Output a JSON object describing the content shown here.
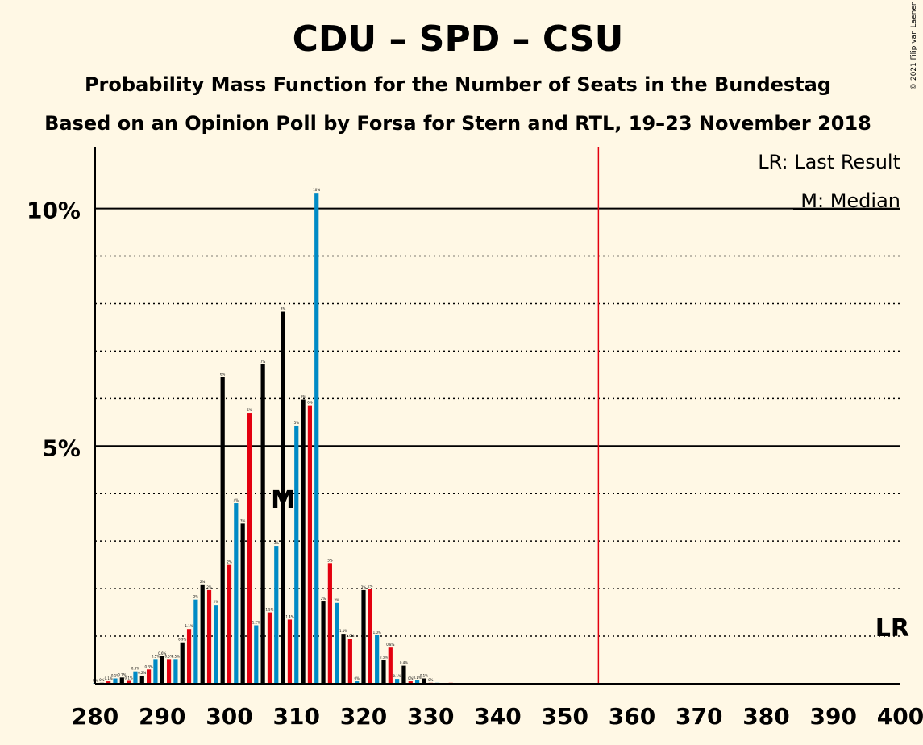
{
  "chart_data": {
    "type": "bar",
    "title": "CDU – SPD – CSU",
    "subtitle1": "Probability Mass Function for the Number of Seats in the Bundestag",
    "subtitle2": "Based on an Opinion Poll by Forsa for Stern and RTL, 19–23 November 2018",
    "copyright": "© 2021 Filip van Laenen",
    "legend": {
      "lr": "LR: Last Result",
      "median": "M: Median"
    },
    "lr_label": "LR",
    "median_marker": "M",
    "median_seat": 308,
    "last_result_seat": 355,
    "xlim": [
      280,
      400
    ],
    "ylim": [
      0,
      11.3
    ],
    "x_ticks": [
      280,
      290,
      300,
      310,
      320,
      330,
      340,
      350,
      360,
      370,
      380,
      390,
      400
    ],
    "x_tick_labels": [
      "280",
      "290",
      "300",
      "310",
      "320",
      "330",
      "340",
      "350",
      "360",
      "370",
      "380",
      "390",
      "400"
    ],
    "y_ticks_major": [
      5,
      10
    ],
    "y_tick_labels": [
      "5%",
      "10%"
    ],
    "y_ticks_dotted": [
      1,
      2,
      3,
      4,
      6,
      7,
      8,
      9
    ],
    "colors": {
      "background": "#FFF8E5",
      "cdu": "#000000",
      "spd": "#E3000F",
      "csu": "#008AC5",
      "lr_line": "#E3000F",
      "axis": "#000000"
    },
    "x": [
      280,
      281,
      282,
      283,
      284,
      285,
      286,
      287,
      288,
      289,
      290,
      291,
      292,
      293,
      294,
      295,
      296,
      297,
      298,
      299,
      300,
      301,
      302,
      303,
      304,
      305,
      306,
      307,
      308,
      309,
      310,
      311,
      312,
      313,
      314,
      315,
      316,
      317,
      318,
      319,
      320,
      321,
      322,
      323,
      324,
      325,
      326,
      327,
      328,
      329,
      330,
      331,
      332,
      333,
      334,
      335,
      336,
      337,
      338,
      339,
      340,
      341,
      342,
      343,
      344,
      345,
      346,
      347,
      348,
      349,
      350,
      351,
      352,
      353,
      354,
      355,
      356,
      357,
      358,
      359,
      360,
      361,
      362,
      363,
      364,
      365,
      366,
      367,
      368,
      369,
      370,
      371,
      372,
      373,
      374,
      375,
      376,
      377,
      378,
      379,
      380,
      381,
      382,
      383,
      384,
      385,
      386,
      387,
      388,
      389,
      390,
      391,
      392,
      393,
      394,
      395,
      396,
      397,
      398,
      399
    ],
    "values": [
      0.01,
      0.02,
      0.05,
      0.11,
      0.13,
      0.06,
      0.26,
      0.17,
      0.3,
      0.52,
      0.58,
      0.52,
      0.52,
      0.87,
      1.15,
      1.77,
      2.09,
      1.97,
      1.66,
      6.46,
      2.5,
      3.8,
      3.37,
      5.7,
      1.23,
      6.72,
      1.5,
      2.9,
      7.83,
      1.35,
      5.43,
      5.98,
      5.86,
      10.33,
      1.73,
      2.54,
      1.7,
      1.05,
      0.95,
      0.05,
      1.97,
      1.99,
      1.02,
      0.5,
      0.76,
      0.1,
      0.38,
      0.05,
      0.07,
      0.11,
      0.02,
      0.02,
      0.01,
      0.02,
      0.01,
      0.01,
      0.01,
      0.01,
      0.01,
      0.01,
      0.01,
      0.01,
      0.01,
      0.01,
      0.01,
      0.01,
      0.01,
      0.01,
      0.01,
      0.01,
      0.01,
      0.01,
      0.01,
      0.01,
      0.01,
      0.01,
      0.01,
      0.01,
      0.01,
      0.01,
      0.01,
      0.01,
      0.01,
      0.01,
      0.01,
      0.01,
      0.01,
      0.01,
      0.01,
      0.01,
      0.01,
      0.01,
      0.01,
      0.01,
      0.01,
      0.01,
      0.01,
      0.01,
      0.01,
      0.01,
      0.01,
      0.01,
      0.01,
      0.01,
      0.01,
      0.01,
      0.01,
      0.01,
      0.01,
      0.01,
      0.01,
      0.01,
      0.01,
      0.01,
      0.01,
      0.01,
      0.01,
      0.01,
      0.01,
      0.01
    ],
    "bar_labels": [
      "0%",
      "0%",
      "0.1%",
      "0.1%",
      "0.1%",
      "0.1%",
      "0.3%",
      "0.2%",
      "0.3%",
      "0.5%",
      "0.6%",
      "0.5%",
      "0.5%",
      "0.9%",
      "1.1%",
      "2%",
      "2%",
      "2%",
      "2%",
      "6%",
      "2%",
      "4%",
      "3%",
      "6%",
      "1.2%",
      "7%",
      "1.5%",
      "3%",
      "8%",
      "1.4%",
      "5%",
      "6%",
      "6%",
      "10%",
      "2%",
      "3%",
      "2%",
      "1.1%",
      "1.0%",
      "0%",
      "2%",
      "2%",
      "1.0%",
      "0.5%",
      "0.8%",
      "0.1%",
      "0.4%",
      "0%",
      "0.1%",
      "0.1%",
      "0%",
      "0%",
      "0%",
      "0%",
      "0%",
      "0%",
      "0%",
      "0%",
      "0%",
      "0%",
      "0%",
      "0%",
      "0%",
      "0%",
      "0%",
      "0%",
      "0%",
      "0%",
      "0%",
      "0%",
      "0%",
      "0%",
      "0%",
      "0%",
      "0%",
      "0%",
      "0%",
      "0%",
      "0%",
      "0%",
      "0%",
      "0%",
      "0%",
      "0%",
      "0%",
      "0%",
      "0%",
      "0%",
      "0%",
      "0%",
      "0%",
      "0%",
      "0%",
      "0%",
      "0%",
      "0%",
      "0%",
      "0%",
      "0%",
      "0%",
      "0%",
      "0%",
      "0%",
      "0%",
      "0%",
      "0%",
      "0%",
      "0%",
      "0%",
      "0%",
      "0%",
      "0%",
      "0%",
      "0%",
      "0%",
      "0%",
      "0%",
      "0%",
      "0%",
      "0%"
    ]
  }
}
